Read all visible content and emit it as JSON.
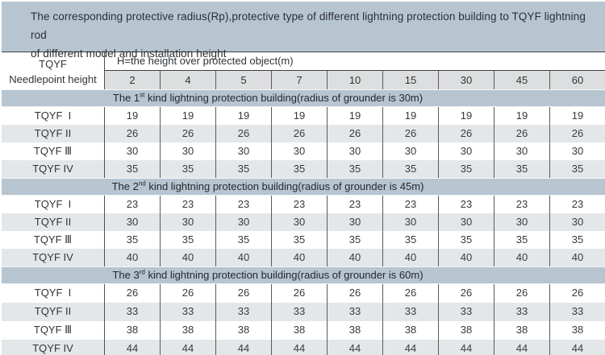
{
  "title": {
    "line1": "The corresponding protective radius(Rp),protective type of different lightning protection building to TQYF lightning rod",
    "line2": "of different model and installation height"
  },
  "header": {
    "needlepoint_line1": "TQYF",
    "needlepoint_line2": "Needlepoint height",
    "h_label": "H=the height over protected object(m)",
    "height_columns": [
      "2",
      "4",
      "5",
      "7",
      "10",
      "15",
      "30",
      "45",
      "60"
    ]
  },
  "sections": [
    {
      "band": {
        "prefix": "The 1",
        "sup": "st",
        "suffix": " kind lightning protection building(radius of grounder is 30m)"
      },
      "rows": [
        {
          "label": "TQYF  I",
          "values": [
            "19",
            "19",
            "19",
            "19",
            "19",
            "19",
            "19",
            "19",
            "19"
          ]
        },
        {
          "label": "TQYF II",
          "values": [
            "26",
            "26",
            "26",
            "26",
            "26",
            "26",
            "26",
            "26",
            "26"
          ]
        },
        {
          "label": "TQYF Ⅲ",
          "values": [
            "30",
            "30",
            "30",
            "30",
            "30",
            "30",
            "30",
            "30",
            "30"
          ]
        },
        {
          "label": "TQYF IV",
          "values": [
            "35",
            "35",
            "35",
            "35",
            "35",
            "35",
            "35",
            "35",
            "35"
          ]
        }
      ]
    },
    {
      "band": {
        "prefix": "The 2",
        "sup": "nd",
        "suffix": " kind lightning protection building(radius of grounder is 45m)"
      },
      "rows": [
        {
          "label": "TQYF  I",
          "values": [
            "23",
            "23",
            "23",
            "23",
            "23",
            "23",
            "23",
            "23",
            "23"
          ]
        },
        {
          "label": "TQYF II",
          "values": [
            "30",
            "30",
            "30",
            "30",
            "30",
            "30",
            "30",
            "30",
            "30"
          ]
        },
        {
          "label": "TQYF Ⅲ",
          "values": [
            "35",
            "35",
            "35",
            "35",
            "35",
            "35",
            "35",
            "35",
            "35"
          ]
        },
        {
          "label": "TQYF IV",
          "values": [
            "40",
            "40",
            "40",
            "40",
            "40",
            "40",
            "40",
            "40",
            "40"
          ]
        }
      ]
    },
    {
      "band": {
        "prefix": "The 3",
        "sup": "rd",
        "suffix": " kind lightning protection building(radius of grounder is 60m)"
      },
      "rows": [
        {
          "label": "TQYF  I",
          "values": [
            "26",
            "26",
            "26",
            "26",
            "26",
            "26",
            "26",
            "26",
            "26"
          ]
        },
        {
          "label": "TQYF II",
          "values": [
            "33",
            "33",
            "33",
            "33",
            "33",
            "33",
            "33",
            "33",
            "33"
          ]
        },
        {
          "label": "TQYF Ⅲ",
          "values": [
            "38",
            "38",
            "38",
            "38",
            "38",
            "38",
            "38",
            "38",
            "38"
          ]
        },
        {
          "label": "TQYF IV",
          "values": [
            "44",
            "44",
            "44",
            "44",
            "44",
            "44",
            "44",
            "44",
            "44"
          ]
        }
      ]
    }
  ],
  "colors": {
    "band_background": "#b7c5d1",
    "row_alt_background": "#e4e7e9",
    "height_row_background": "#dcdedf",
    "grid_line": "#555555",
    "text": "#3a3a3a"
  }
}
